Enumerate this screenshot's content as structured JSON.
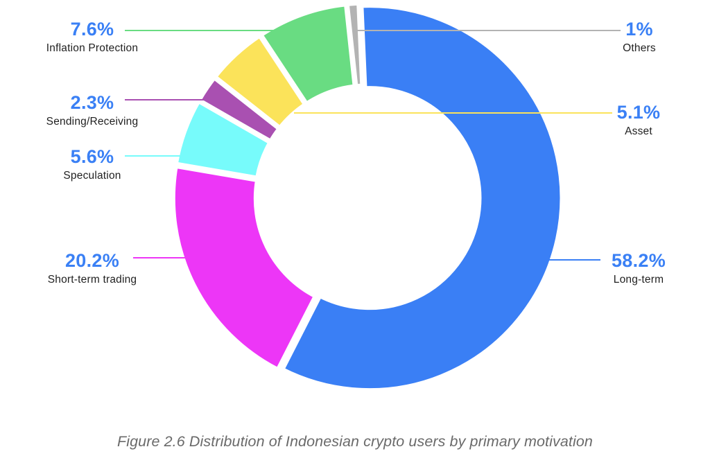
{
  "chart_data": {
    "type": "pie",
    "subtype": "donut",
    "title": "",
    "categories": [
      "Long-term",
      "Short-term trading",
      "Speculation",
      "Sending/Receiving",
      "Asset",
      "Inflation Protection",
      "Others"
    ],
    "values": [
      58.2,
      20.2,
      5.6,
      2.3,
      5.1,
      7.6,
      1
    ],
    "value_labels": [
      "58.2%",
      "20.2%",
      "5.6%",
      "2.3%",
      "5.1%",
      "7.6%",
      "1%"
    ],
    "colors": [
      "#3a7ff5",
      "#ed36f7",
      "#77fbfb",
      "#a950b1",
      "#fbe35a",
      "#69dc82",
      "#b3b3b3"
    ],
    "unit": "%",
    "start_angle_deg": -2.5,
    "direction": "clockwise",
    "legend": "none (direct labels with leader lines)"
  },
  "caption": "Figure 2.6 Distribution of Indonesian crypto users by primary motivation"
}
